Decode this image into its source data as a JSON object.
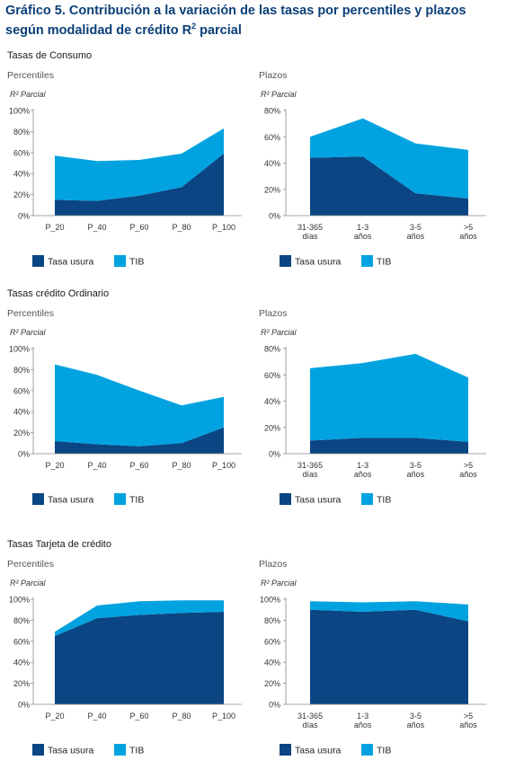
{
  "title": {
    "prefix": "Gráfico 5. Contribución a la variación de las tasas por percentiles y plazos según modalidad de crédito R",
    "sup": "2",
    "suffix": " parcial"
  },
  "sections": [
    {
      "title": "Tasas de Consumo"
    },
    {
      "title": "Tasas crédito Ordinario"
    },
    {
      "title": "Tasas Tarjeta de crédito"
    }
  ],
  "colors": {
    "tasa_usura": "#0b4583",
    "tib": "#00a3e0"
  },
  "chart_data": [
    {
      "type": "area",
      "stacked": true,
      "title": "Percentiles",
      "ylabel": "R² Parcial",
      "categories": [
        "P_20",
        "P_40",
        "P_60",
        "P_80",
        "P_100"
      ],
      "yticks": [
        "0%",
        "20%",
        "40%",
        "60%",
        "80%",
        "100%"
      ],
      "ylim": [
        0,
        100
      ],
      "series": [
        {
          "name": "Tasa usura",
          "values": [
            15,
            14,
            19,
            27,
            59
          ]
        },
        {
          "name": "TIB",
          "values": [
            42,
            38,
            34,
            32,
            24
          ]
        }
      ],
      "legend": "bottom-left"
    },
    {
      "type": "area",
      "stacked": true,
      "title": "Plazos",
      "ylabel": "R² Parcial",
      "categories": [
        "31-365\ndías",
        "1-3\naños",
        "3-5\naños",
        ">5\naños"
      ],
      "yticks": [
        "0%",
        "20%",
        "40%",
        "60%",
        "80%"
      ],
      "ylim": [
        0,
        80
      ],
      "series": [
        {
          "name": "Tasa usura",
          "values": [
            44,
            45,
            17,
            13
          ]
        },
        {
          "name": "TIB",
          "values": [
            16,
            29,
            38,
            37
          ]
        }
      ],
      "legend": "bottom-left"
    },
    {
      "type": "area",
      "stacked": true,
      "title": "Percentiles",
      "ylabel": "R² Parcial",
      "categories": [
        "P_20",
        "P_40",
        "P_60",
        "P_80",
        "P_100"
      ],
      "yticks": [
        "0%",
        "20%",
        "40%",
        "60%",
        "80%",
        "100%"
      ],
      "ylim": [
        0,
        100
      ],
      "series": [
        {
          "name": "Tasa usura",
          "values": [
            12,
            9,
            7,
            10,
            25
          ]
        },
        {
          "name": "TIB",
          "values": [
            73,
            66,
            53,
            36,
            29
          ]
        }
      ],
      "legend": "bottom-left"
    },
    {
      "type": "area",
      "stacked": true,
      "title": "Plazos",
      "ylabel": "R² Parcial",
      "categories": [
        "31-365\ndías",
        "1-3\naños",
        "3-5\naños",
        ">5\naños"
      ],
      "yticks": [
        "0%",
        "20%",
        "40%",
        "60%",
        "80%"
      ],
      "ylim": [
        0,
        80
      ],
      "series": [
        {
          "name": "Tasa usura",
          "values": [
            10,
            12,
            12,
            9
          ]
        },
        {
          "name": "TIB",
          "values": [
            55,
            57,
            64,
            49
          ]
        }
      ],
      "legend": "bottom-left"
    },
    {
      "type": "area",
      "stacked": true,
      "title": "Percentiles",
      "ylabel": "R² Parcial",
      "categories": [
        "P_20",
        "P_40",
        "P_60",
        "P_80",
        "P_100"
      ],
      "yticks": [
        "0%",
        "20%",
        "40%",
        "60%",
        "80%",
        "100%"
      ],
      "ylim": [
        0,
        100
      ],
      "series": [
        {
          "name": "Tasa usura",
          "values": [
            65,
            82,
            85,
            87,
            88
          ]
        },
        {
          "name": "TIB",
          "values": [
            4,
            12,
            13,
            12,
            11
          ]
        }
      ],
      "legend": "bottom-left"
    },
    {
      "type": "area",
      "stacked": true,
      "title": "Plazos",
      "ylabel": "R² Parcial",
      "categories": [
        "31-365\ndías",
        "1-3\naños",
        "3-5\naños",
        ">5\naños"
      ],
      "yticks": [
        "0%",
        "20%",
        "40%",
        "60%",
        "80%",
        "100%"
      ],
      "ylim": [
        0,
        100
      ],
      "series": [
        {
          "name": "Tasa usura",
          "values": [
            90,
            88,
            90,
            79
          ]
        },
        {
          "name": "TIB",
          "values": [
            8,
            9,
            8,
            16
          ]
        }
      ],
      "legend": "bottom-left"
    }
  ]
}
